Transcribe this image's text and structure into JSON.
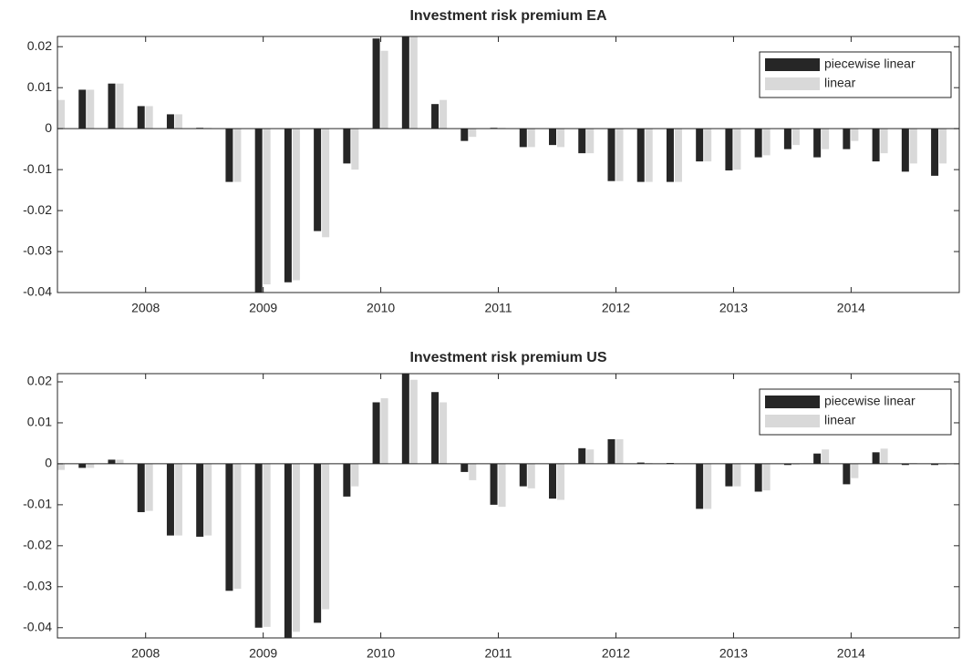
{
  "chart_data": [
    {
      "type": "bar",
      "title": "Investment risk premium EA",
      "x": [
        2007.25,
        2007.5,
        2007.75,
        2008,
        2008.25,
        2008.5,
        2008.75,
        2009,
        2009.25,
        2009.5,
        2009.75,
        2010,
        2010.25,
        2010.5,
        2010.75,
        2011,
        2011.25,
        2011.5,
        2011.75,
        2012,
        2012.25,
        2012.5,
        2012.75,
        2013,
        2013.25,
        2013.5,
        2013.75,
        2014,
        2014.25,
        2014.5,
        2014.75
      ],
      "series": [
        {
          "name": "piecewise linear",
          "color": "#262626",
          "values": [
            0.006,
            0.0095,
            0.011,
            0.0055,
            0.0035,
            0.0002,
            -0.013,
            -0.0405,
            -0.0375,
            -0.025,
            -0.0085,
            0.022,
            0.024,
            0.006,
            -0.003,
            0.0002,
            -0.0045,
            -0.004,
            -0.006,
            -0.0128,
            -0.013,
            -0.013,
            -0.008,
            -0.0102,
            -0.007,
            -0.005,
            -0.007,
            -0.005,
            -0.008,
            -0.0105,
            -0.0115
          ]
        },
        {
          "name": "linear",
          "color": "#d9d9d9",
          "values": [
            0.007,
            0.0095,
            0.011,
            0.0055,
            0.0035,
            0.0002,
            -0.013,
            -0.038,
            -0.037,
            -0.0265,
            -0.01,
            0.019,
            0.0225,
            0.007,
            -0.002,
            0.0002,
            -0.0045,
            -0.0045,
            -0.006,
            -0.0128,
            -0.013,
            -0.013,
            -0.008,
            -0.01,
            -0.0065,
            -0.004,
            -0.005,
            -0.003,
            -0.006,
            -0.0085,
            -0.0085
          ]
        }
      ],
      "xlim": [
        2007.25,
        2014.92
      ],
      "xticks": [
        2008,
        2009,
        2010,
        2011,
        2012,
        2013,
        2014
      ],
      "ylim": [
        -0.04,
        0.0225
      ],
      "yticks": [
        -0.04,
        -0.03,
        -0.02,
        -0.01,
        0,
        0.01,
        0.02
      ],
      "legend": "upper right"
    },
    {
      "type": "bar",
      "title": "Investment risk premium US",
      "x": [
        2007.25,
        2007.5,
        2007.75,
        2008,
        2008.25,
        2008.5,
        2008.75,
        2009,
        2009.25,
        2009.5,
        2009.75,
        2010,
        2010.25,
        2010.5,
        2010.75,
        2011,
        2011.25,
        2011.5,
        2011.75,
        2012,
        2012.25,
        2012.5,
        2012.75,
        2013,
        2013.25,
        2013.5,
        2013.75,
        2014,
        2014.25,
        2014.5,
        2014.75
      ],
      "series": [
        {
          "name": "piecewise linear",
          "color": "#262626",
          "values": [
            -0.001,
            -0.001,
            0.001,
            -0.0118,
            -0.0175,
            -0.0178,
            -0.031,
            -0.04,
            -0.043,
            -0.0388,
            -0.008,
            0.015,
            0.022,
            0.0175,
            -0.002,
            -0.01,
            -0.0055,
            -0.0085,
            0.0038,
            0.006,
            0.0003,
            0.0002,
            -0.011,
            -0.0055,
            -0.0068,
            -0.0003,
            0.0025,
            -0.005,
            0.0028,
            -0.0003,
            -0.0003
          ]
        },
        {
          "name": "linear",
          "color": "#d9d9d9",
          "values": [
            -0.0015,
            -0.001,
            0.001,
            -0.0115,
            -0.0175,
            -0.0175,
            -0.0305,
            -0.0398,
            -0.041,
            -0.0355,
            -0.0055,
            0.016,
            0.0205,
            0.015,
            -0.004,
            -0.0105,
            -0.006,
            -0.0088,
            0.0035,
            0.006,
            0.0002,
            0.0001,
            -0.011,
            -0.0055,
            -0.0065,
            -0.0002,
            0.0035,
            -0.0035,
            0.0037,
            0.0002,
            -0.0002
          ]
        }
      ],
      "xlim": [
        2007.25,
        2014.92
      ],
      "xticks": [
        2008,
        2009,
        2010,
        2011,
        2012,
        2013,
        2014
      ],
      "ylim": [
        -0.0425,
        0.022
      ],
      "yticks": [
        -0.04,
        -0.03,
        -0.02,
        -0.01,
        0,
        0.01,
        0.02
      ],
      "legend": "upper right"
    }
  ]
}
